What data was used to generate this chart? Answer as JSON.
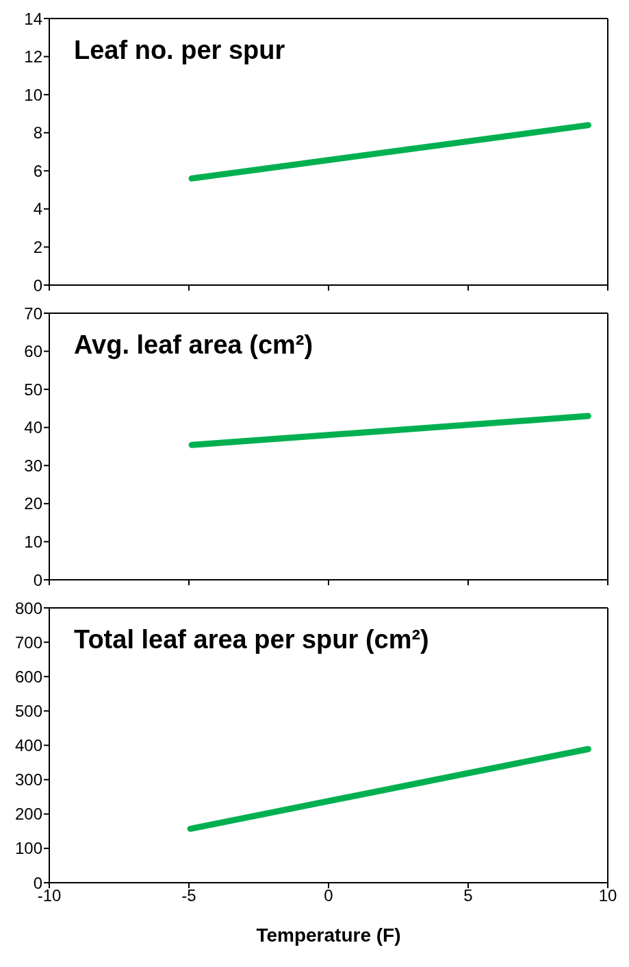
{
  "chart_data": [
    {
      "type": "line",
      "title": "Leaf no. per spur",
      "x": [
        -4.9,
        9.3
      ],
      "values": [
        5.6,
        8.4
      ],
      "color": "#00b050",
      "xlim": [
        -10,
        10
      ],
      "xticks": [
        -10,
        -5,
        0,
        5,
        10
      ],
      "ylim": [
        0,
        14
      ],
      "yticks": [
        0,
        2,
        4,
        6,
        8,
        10,
        12,
        14
      ],
      "tick_labels": "y",
      "grid": false,
      "legend": false
    },
    {
      "type": "line",
      "title": "Avg. leaf area (cm²)",
      "x": [
        -4.9,
        9.3
      ],
      "values": [
        35.4,
        43
      ],
      "color": "#00b050",
      "xlim": [
        -10,
        10
      ],
      "xticks": [
        -10,
        -5,
        0,
        5,
        10
      ],
      "ylim": [
        0,
        70
      ],
      "yticks": [
        0,
        10,
        20,
        30,
        40,
        50,
        60,
        70
      ],
      "tick_labels": "y",
      "grid": false,
      "legend": false
    },
    {
      "type": "line",
      "title": "Total leaf area per spur (cm²)",
      "xlabel": "Temperature (F)",
      "x": [
        -4.95,
        9.3
      ],
      "values": [
        157,
        389
      ],
      "color": "#00b050",
      "xlim": [
        -10,
        10
      ],
      "xticks": [
        -10,
        -5,
        0,
        5,
        10
      ],
      "ylim": [
        0,
        800
      ],
      "yticks": [
        0,
        100,
        200,
        300,
        400,
        500,
        600,
        700,
        800
      ],
      "grid": false,
      "legend": false
    }
  ]
}
